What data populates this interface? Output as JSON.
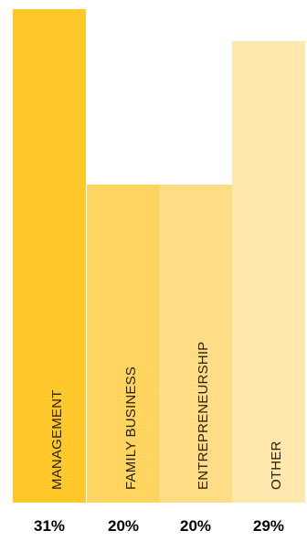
{
  "chart_data": {
    "type": "bar",
    "categories": [
      "MANAGEMENT",
      "FAMILY BUSINESS",
      "ENTREPRENEURSHIP",
      "OTHER"
    ],
    "values": [
      31,
      20,
      20,
      29
    ],
    "value_labels": [
      "31%",
      "20%",
      "20%",
      "29%"
    ],
    "unit": "%",
    "colors": [
      "#FFC92B",
      "#FFD45F",
      "#FFDD86",
      "#FEE8AE"
    ],
    "label_color": "#2a2000",
    "title": "",
    "xlabel": "",
    "ylabel": "",
    "ylim": [
      0,
      31
    ],
    "grid": false,
    "legend": "none"
  }
}
